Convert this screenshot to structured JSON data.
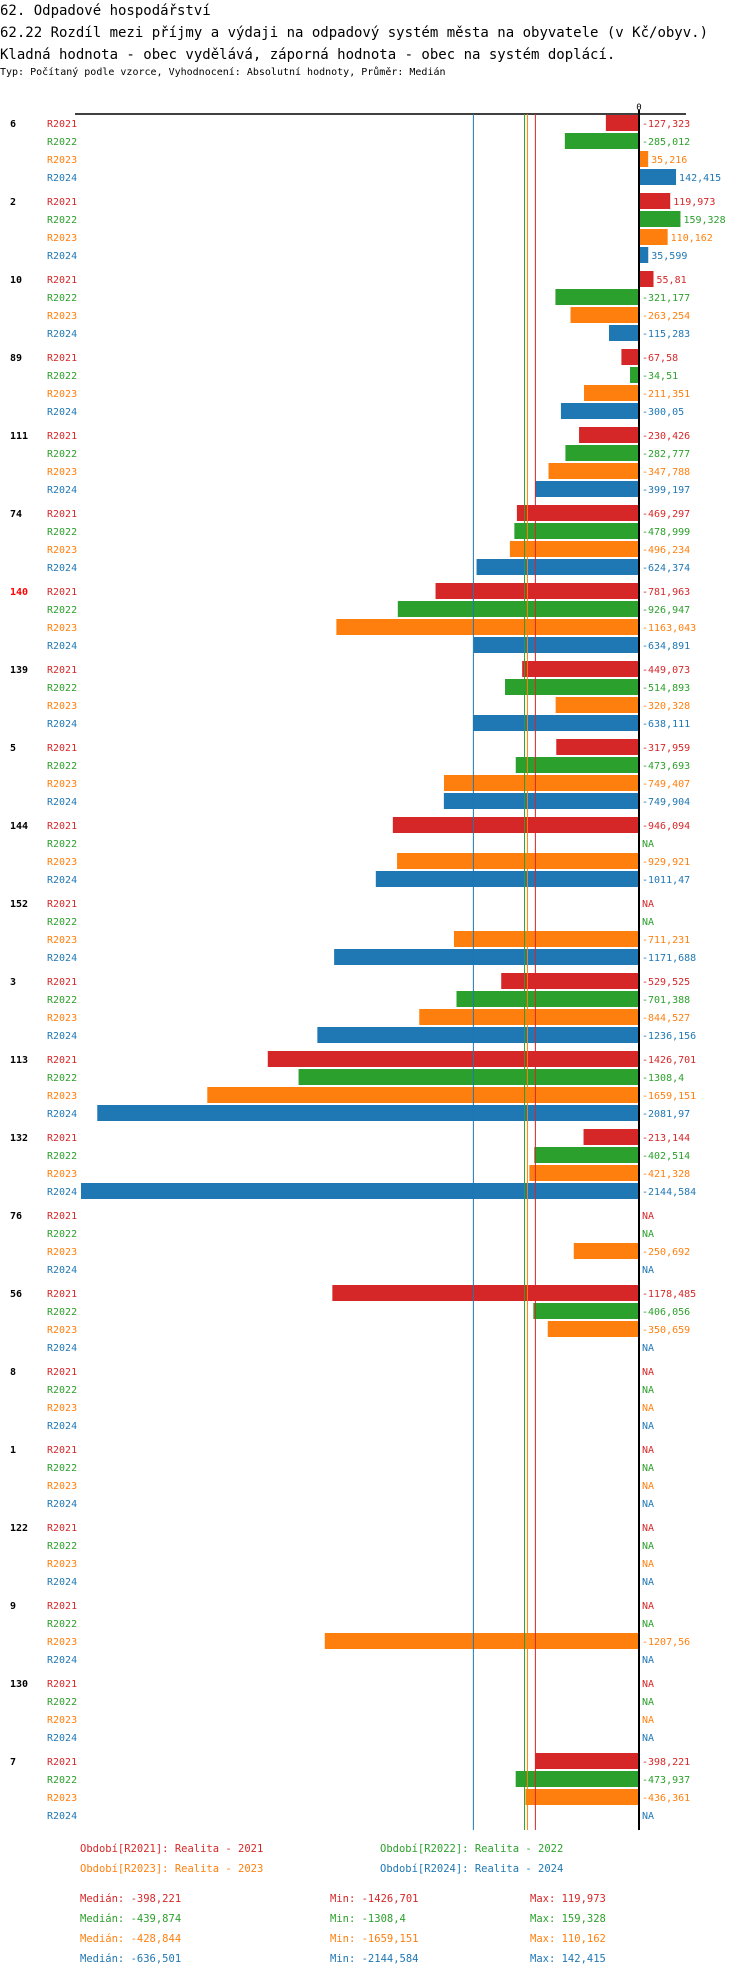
{
  "header": {
    "section_title": "62. Odpadové hospodářství",
    "indicator_title": "62.22 Rozdíl mezi příjmy a výdaji na odpadový systém města na obyvatele (v Kč/obyv.) Kladná hodnota - obec vydělává, záporná hodnota - obec na systém doplácí.",
    "subtitle": "Typ: Počítaný podle vzorce, Vyhodnocení: Absolutní hodnoty, Průměr: Medián"
  },
  "colors": {
    "R2021": "#d62728",
    "R2022": "#2ca02c",
    "R2023": "#ff7f0e",
    "R2024": "#1f77b4",
    "highlight_group": "#ff0000"
  },
  "chart_data": {
    "type": "bar",
    "orientation": "horizontal",
    "title": "62.22 Rozdíl mezi příjmy a výdaji na odpadový systém města na obyvatele (v Kč/obyv.)",
    "axis_zero_label": "0",
    "series_names": [
      "R2021",
      "R2022",
      "R2023",
      "R2024"
    ],
    "highlighted_group": "140",
    "groups": [
      {
        "label": "6",
        "values": [
          -127.323,
          -285.012,
          35.216,
          142.415
        ],
        "labels": [
          "-127,323",
          "-285,012",
          "35,216",
          "142,415"
        ]
      },
      {
        "label": "2",
        "values": [
          119.973,
          159.328,
          110.162,
          35.599
        ],
        "labels": [
          "119,973",
          "159,328",
          "110,162",
          "35,599"
        ]
      },
      {
        "label": "10",
        "values": [
          55.81,
          -321.177,
          -263.254,
          -115.283
        ],
        "labels": [
          "55,81",
          "-321,177",
          "-263,254",
          "-115,283"
        ]
      },
      {
        "label": "89",
        "values": [
          -67.58,
          -34.51,
          -211.351,
          -300.05
        ],
        "labels": [
          "-67,58",
          "-34,51",
          "-211,351",
          "-300,05"
        ]
      },
      {
        "label": "111",
        "values": [
          -230.426,
          -282.777,
          -347.788,
          -399.197
        ],
        "labels": [
          "-230,426",
          "-282,777",
          "-347,788",
          "-399,197"
        ]
      },
      {
        "label": "74",
        "values": [
          -469.297,
          -478.999,
          -496.234,
          -624.374
        ],
        "labels": [
          "-469,297",
          "-478,999",
          "-496,234",
          "-624,374"
        ]
      },
      {
        "label": "140",
        "values": [
          -781.963,
          -926.947,
          -1163.043,
          -634.891
        ],
        "labels": [
          "-781,963",
          "-926,947",
          "-1163,043",
          "-634,891"
        ]
      },
      {
        "label": "139",
        "values": [
          -449.073,
          -514.893,
          -320.328,
          -638.111
        ],
        "labels": [
          "-449,073",
          "-514,893",
          "-320,328",
          "-638,111"
        ]
      },
      {
        "label": "5",
        "values": [
          -317.959,
          -473.693,
          -749.407,
          -749.904
        ],
        "labels": [
          "-317,959",
          "-473,693",
          "-749,407",
          "-749,904"
        ]
      },
      {
        "label": "144",
        "values": [
          -946.094,
          null,
          -929.921,
          -1011.47
        ],
        "labels": [
          "-946,094",
          "NA",
          "-929,921",
          "-1011,47"
        ]
      },
      {
        "label": "152",
        "values": [
          null,
          null,
          -711.231,
          -1171.688
        ],
        "labels": [
          "NA",
          "NA",
          "-711,231",
          "-1171,688"
        ]
      },
      {
        "label": "3",
        "values": [
          -529.525,
          -701.388,
          -844.527,
          -1236.156
        ],
        "labels": [
          "-529,525",
          "-701,388",
          "-844,527",
          "-1236,156"
        ]
      },
      {
        "label": "113",
        "values": [
          -1426.701,
          -1308.4,
          -1659.151,
          -2081.97
        ],
        "labels": [
          "-1426,701",
          "-1308,4",
          "-1659,151",
          "-2081,97"
        ]
      },
      {
        "label": "132",
        "values": [
          -213.144,
          -402.514,
          -421.328,
          -2144.584
        ],
        "labels": [
          "-213,144",
          "-402,514",
          "-421,328",
          "-2144,584"
        ]
      },
      {
        "label": "76",
        "values": [
          null,
          null,
          -250.692,
          null
        ],
        "labels": [
          "NA",
          "NA",
          "-250,692",
          "NA"
        ]
      },
      {
        "label": "56",
        "values": [
          -1178.485,
          -406.056,
          -350.659,
          null
        ],
        "labels": [
          "-1178,485",
          "-406,056",
          "-350,659",
          "NA"
        ]
      },
      {
        "label": "8",
        "values": [
          null,
          null,
          null,
          null
        ],
        "labels": [
          "NA",
          "NA",
          "NA",
          "NA"
        ]
      },
      {
        "label": "1",
        "values": [
          null,
          null,
          null,
          null
        ],
        "labels": [
          "NA",
          "NA",
          "NA",
          "NA"
        ]
      },
      {
        "label": "122",
        "values": [
          null,
          null,
          null,
          null
        ],
        "labels": [
          "NA",
          "NA",
          "NA",
          "NA"
        ]
      },
      {
        "label": "9",
        "values": [
          null,
          null,
          -1207.56,
          null
        ],
        "labels": [
          "NA",
          "NA",
          "-1207,56",
          "NA"
        ]
      },
      {
        "label": "130",
        "values": [
          null,
          null,
          null,
          null
        ],
        "labels": [
          "NA",
          "NA",
          "NA",
          "NA"
        ]
      },
      {
        "label": "7",
        "values": [
          -398.221,
          -473.937,
          -436.361,
          null
        ],
        "labels": [
          "-398,221",
          "-473,937",
          "-436,361",
          "NA"
        ]
      }
    ],
    "x_range": [
      -2144.584,
      159.328
    ],
    "medians": [
      -398.221,
      -439.874,
      -428.844,
      -636.501
    ],
    "legend": [
      {
        "series": "R2021",
        "text": "Období[R2021]: Realita - 2021"
      },
      {
        "series": "R2022",
        "text": "Období[R2022]: Realita - 2022"
      },
      {
        "series": "R2023",
        "text": "Období[R2023]: Realita - 2023"
      },
      {
        "series": "R2024",
        "text": "Období[R2024]: Realita - 2024"
      }
    ],
    "legend_position": "bottom",
    "stats": [
      {
        "series": "R2021",
        "median": "Medián: -398,221",
        "min": "Min: -1426,701",
        "max": "Max: 119,973"
      },
      {
        "series": "R2022",
        "median": "Medián: -439,874",
        "min": "Min: -1308,4",
        "max": "Max: 159,328"
      },
      {
        "series": "R2023",
        "median": "Medián: -428,844",
        "min": "Min: -1659,151",
        "max": "Max: 110,162"
      },
      {
        "series": "R2024",
        "median": "Medián: -636,501",
        "min": "Min: -2144,584",
        "max": "Max: 142,415"
      }
    ]
  }
}
